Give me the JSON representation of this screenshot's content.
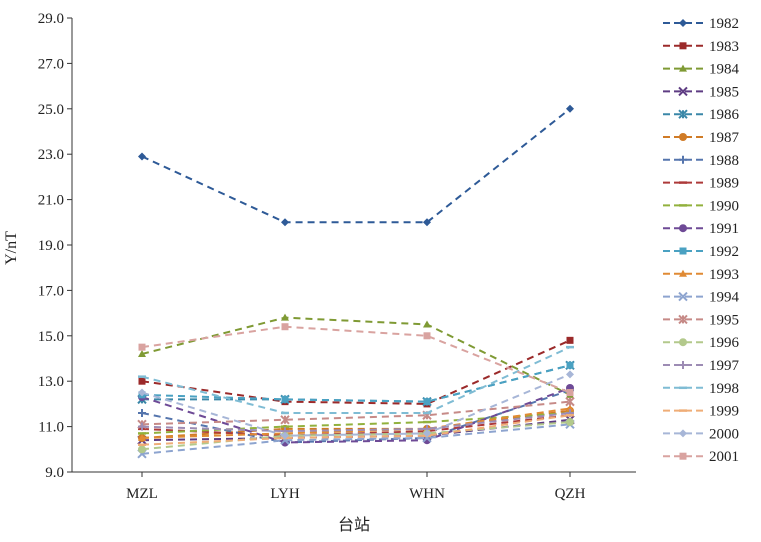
{
  "chart_data": {
    "type": "line",
    "categories": [
      "MZL",
      "LYH",
      "WHN",
      "QZH"
    ],
    "xlabel": "台站",
    "ylabel": "Y/nT",
    "ylim": [
      9.0,
      29.0
    ],
    "yticks": [
      "9.0",
      "11.0",
      "13.0",
      "15.0",
      "17.0",
      "19.0",
      "21.0",
      "23.0",
      "25.0",
      "27.0",
      "29.0"
    ],
    "grid": false,
    "legend_position": "right",
    "series": [
      {
        "name": "1982",
        "values": [
          22.9,
          20.0,
          20.0,
          25.0
        ],
        "color": "#2e5a97",
        "marker": "diamond"
      },
      {
        "name": "1983",
        "values": [
          13.0,
          12.1,
          12.0,
          14.8
        ],
        "color": "#9b2a2a",
        "marker": "square"
      },
      {
        "name": "1984",
        "values": [
          14.2,
          15.8,
          15.5,
          12.4
        ],
        "color": "#7f9a34",
        "marker": "triangle"
      },
      {
        "name": "1985",
        "values": [
          10.4,
          10.5,
          10.6,
          11.3
        ],
        "color": "#5e3c83",
        "marker": "x"
      },
      {
        "name": "1986",
        "values": [
          12.2,
          12.2,
          12.1,
          13.7
        ],
        "color": "#3a87a8",
        "marker": "star"
      },
      {
        "name": "1987",
        "values": [
          10.5,
          10.9,
          10.9,
          11.7
        ],
        "color": "#d07b26",
        "marker": "circle"
      },
      {
        "name": "1988",
        "values": [
          11.6,
          10.3,
          10.5,
          12.6
        ],
        "color": "#5575ad",
        "marker": "plus"
      },
      {
        "name": "1989",
        "values": [
          10.9,
          10.6,
          10.8,
          11.5
        ],
        "color": "#ad3a3a",
        "marker": "dash"
      },
      {
        "name": "1990",
        "values": [
          10.7,
          11.0,
          11.2,
          11.6
        ],
        "color": "#92b13d",
        "marker": "dash"
      },
      {
        "name": "1991",
        "values": [
          12.3,
          10.3,
          10.4,
          12.7
        ],
        "color": "#6e4a96",
        "marker": "circle"
      },
      {
        "name": "1992",
        "values": [
          12.4,
          12.2,
          12.1,
          13.7
        ],
        "color": "#4aa1c2",
        "marker": "square"
      },
      {
        "name": "1993",
        "values": [
          10.5,
          10.7,
          10.9,
          11.8
        ],
        "color": "#e08a34",
        "marker": "triangle"
      },
      {
        "name": "1994",
        "values": [
          9.8,
          10.4,
          10.5,
          11.1
        ],
        "color": "#8da4cf",
        "marker": "x"
      },
      {
        "name": "1995",
        "values": [
          11.1,
          11.3,
          11.5,
          12.1
        ],
        "color": "#c68a87",
        "marker": "star"
      },
      {
        "name": "1996",
        "values": [
          10.0,
          10.6,
          10.7,
          11.2
        ],
        "color": "#b3c98c",
        "marker": "circle"
      },
      {
        "name": "1997",
        "values": [
          11.0,
          10.8,
          10.9,
          11.6
        ],
        "color": "#9d8cb4",
        "marker": "plus"
      },
      {
        "name": "1998",
        "values": [
          13.2,
          11.6,
          11.6,
          14.5
        ],
        "color": "#7fbcd4",
        "marker": "dash"
      },
      {
        "name": "1999",
        "values": [
          10.2,
          10.5,
          10.6,
          11.5
        ],
        "color": "#efad77",
        "marker": "dash"
      },
      {
        "name": "2000",
        "values": [
          12.5,
          10.6,
          10.7,
          13.3
        ],
        "color": "#a7b6d7",
        "marker": "diamond"
      },
      {
        "name": "2001",
        "values": [
          14.5,
          15.4,
          15.0,
          12.5
        ],
        "color": "#d9a3a0",
        "marker": "square"
      }
    ]
  }
}
